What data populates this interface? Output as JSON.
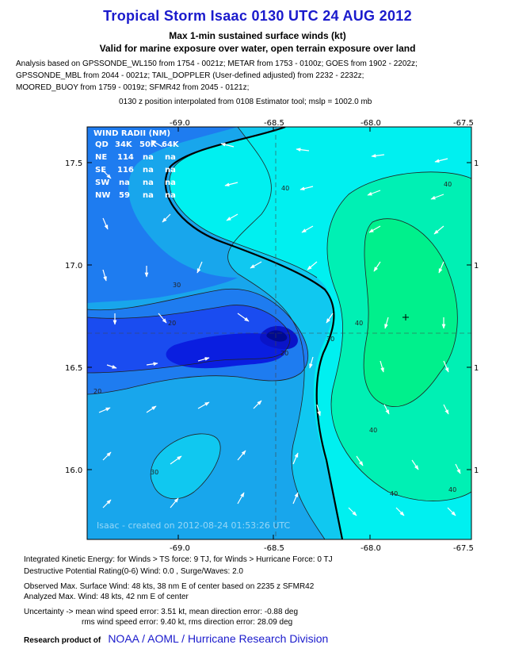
{
  "title": "Tropical Storm Isaac 0130 UTC 24 AUG 2012",
  "subtitle1": "Max 1-min sustained surface winds (kt)",
  "subtitle2": "Valid for marine exposure over water, open terrain exposure over land",
  "analysis_notes": [
    "Analysis based on GPSSONDE_WL150 from 1754 - 0021z; METAR from 1753 - 0100z; GOES from 1902 - 2202z;",
    "GPSSONDE_MBL from 2044 - 0021z; TAIL_DOPPLER (User-defined adjusted) from 2232 - 2232z;",
    "MOORED_BUOY from 1759 - 0019z; SFMR42 from 2045 - 0121z;",
    "0130 z position interpolated from 0108 Estimator tool; mslp = 1002.0 mb"
  ],
  "map": {
    "x_ticks": [
      "-69.0",
      "-68.5",
      "-68.0",
      "-67.5"
    ],
    "y_ticks": [
      "17.5",
      "17.0",
      "16.5",
      "16.0"
    ],
    "right_ticks": [
      "1",
      "1",
      "1",
      "1"
    ],
    "wind_radii": {
      "title": "WIND RADII (NM)",
      "header": [
        "QD",
        "34K",
        "50K",
        "64K"
      ],
      "rows": [
        [
          "NE",
          "114",
          "na",
          "na"
        ],
        [
          "SE",
          "116",
          "na",
          "na"
        ],
        [
          "SW",
          "na",
          "na",
          "na"
        ],
        [
          "NW",
          "59",
          "na",
          "na"
        ]
      ]
    },
    "contour_labels": [
      "40",
      "40",
      "40",
      "40",
      "30",
      "30",
      "20",
      "20",
      "20",
      "30",
      "40",
      "40"
    ],
    "watermark": "Isaac - created on 2012-08-24 01:53:26 UTC",
    "colors": {
      "deep_blue": "#0a1ee0",
      "blue": "#1a4cf0",
      "mid_blue": "#1e7cf0",
      "light_blue": "#18a6ec",
      "sky": "#10c8f0",
      "cyan": "#00f0f0",
      "aqua_green": "#00f0b4",
      "green": "#00f08c"
    }
  },
  "info": {
    "ike": "Integrated Kinetic Energy: for Winds > TS force: 9 TJ, for Winds > Hurricane Force: 0 TJ",
    "destructive": "Destructive Potential Rating(0-6)  Wind: 0.0 , Surge/Waves: 2.0",
    "observed": "Observed Max. Surface Wind: 48 kts, 38 nm E of center based on 2235 z SFMR42",
    "analyzed": "Analyzed Max. Wind: 48 kts, 42 nm  E of center",
    "uncertainty1": "Uncertainty -> mean wind speed error: 3.51 kt, mean direction error:  -0.88 deg",
    "uncertainty2": "rms wind speed error: 9.40 kt, rms direction error: 28.09 deg"
  },
  "footer": {
    "label": "Research product of",
    "org": "NOAA  /  AOML  /  Hurricane Research Division"
  }
}
